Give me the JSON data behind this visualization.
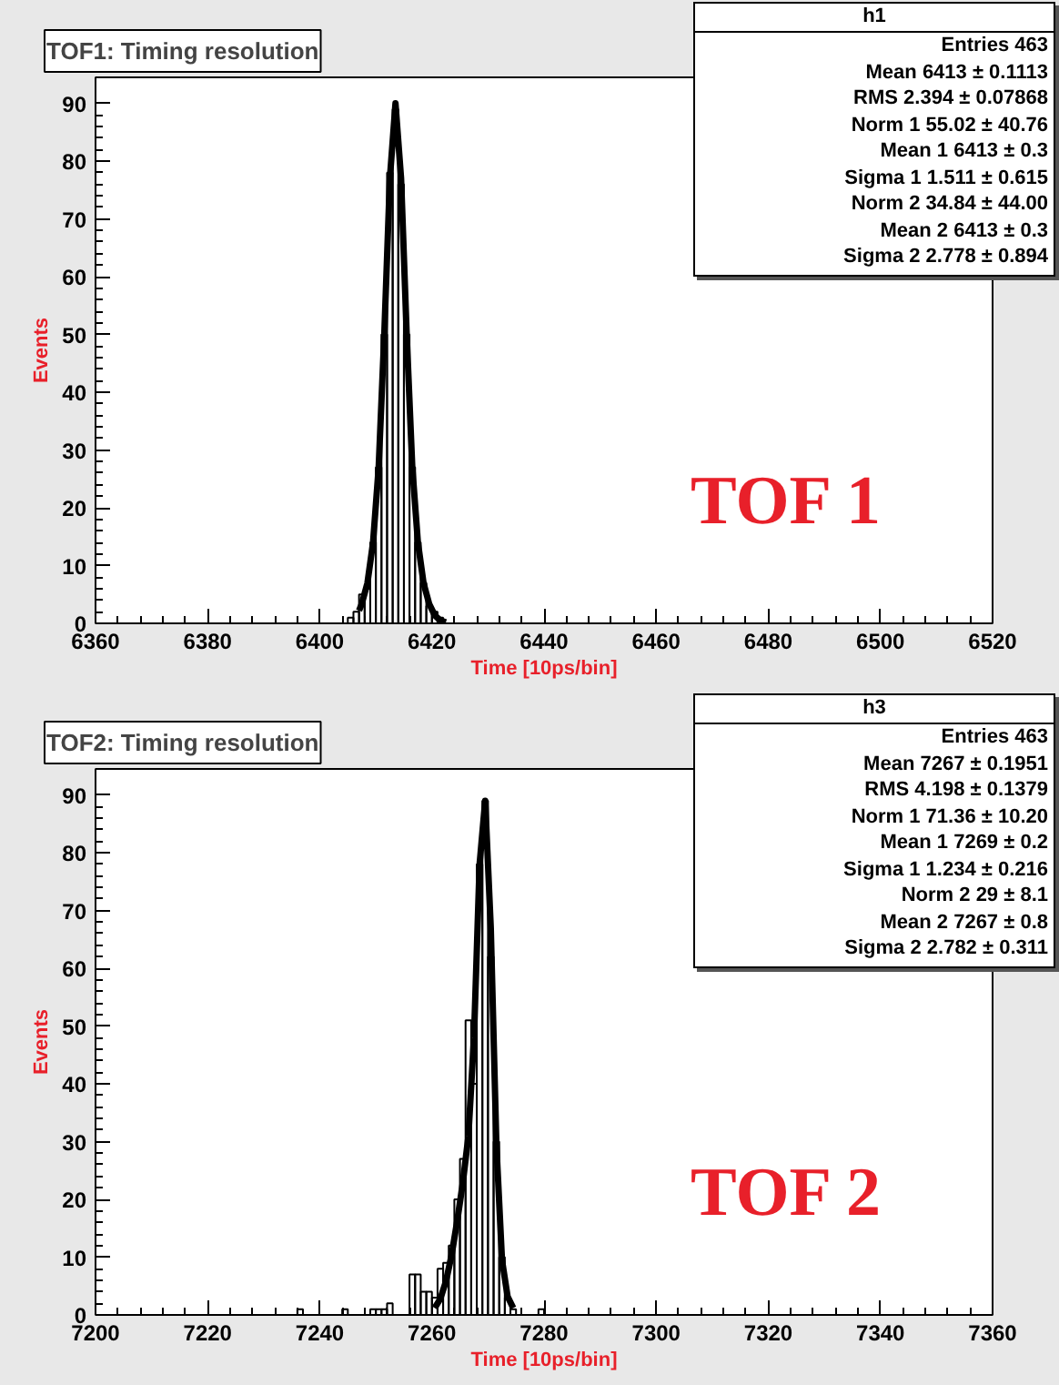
{
  "chart_data": [
    {
      "type": "histogram",
      "title": "TOF1: Timing resolution",
      "xlabel": "Time [10ps/bin]",
      "ylabel": "Events",
      "xlim": [
        6360,
        6520
      ],
      "ylim": [
        0,
        94.5
      ],
      "xticks": [
        6360,
        6380,
        6400,
        6420,
        6440,
        6460,
        6480,
        6500,
        6520
      ],
      "yticks": [
        0,
        10,
        20,
        30,
        40,
        50,
        60,
        70,
        80,
        90
      ],
      "series": [
        {
          "type": "histogram",
          "color": "#000000",
          "bins": [
            6405,
            6406,
            6407,
            6408,
            6409,
            6410,
            6411,
            6412,
            6413,
            6414,
            6415,
            6416,
            6417,
            6418,
            6419,
            6420,
            6421,
            6422
          ],
          "values": [
            1,
            2,
            5,
            6,
            14,
            27,
            50,
            78,
            89,
            76,
            50,
            27,
            14,
            7,
            3,
            2,
            1
          ]
        },
        {
          "type": "line",
          "color": "#000000",
          "x": [
            6407.0,
            6407.5,
            6408.5,
            6409.5,
            6410.5,
            6411.5,
            6412.5,
            6413.5,
            6414.5,
            6415.5,
            6416.5,
            6417.5,
            6418.5,
            6419.5,
            6420.5,
            6421.5,
            6422.5
          ],
          "values": [
            2.2,
            3.4,
            7,
            14,
            27,
            50,
            77,
            90,
            77,
            50,
            27,
            14,
            7,
            3.4,
            1.4,
            0.5,
            0.2
          ]
        }
      ],
      "annotations": [
        "h1",
        "Entries 463",
        "Mean 6413 ± 0.1113",
        "RMS 2.394 ± 0.07868",
        "Norm 1 55.02 ± 40.76",
        "Mean 1 6413 ± 0.3",
        "Sigma 1 1.511 ± 0.615",
        "Norm 2 34.84 ± 44.00",
        "Mean 2 6413 ± 0.3",
        "Sigma 2 2.778 ± 0.894",
        "TOF 1"
      ]
    },
    {
      "type": "histogram",
      "title": "TOF2: Timing resolution",
      "xlabel": "Time [10ps/bin]",
      "ylabel": "Events",
      "xlim": [
        7200,
        7360
      ],
      "ylim": [
        0,
        94.5
      ],
      "xticks": [
        7200,
        7220,
        7240,
        7260,
        7280,
        7300,
        7320,
        7340,
        7360
      ],
      "yticks": [
        0,
        10,
        20,
        30,
        40,
        50,
        60,
        70,
        80,
        90
      ],
      "series": [
        {
          "type": "histogram",
          "color": "#000000",
          "bins": [
            7236,
            7237,
            7238,
            7239,
            7240,
            7241,
            7242,
            7243,
            7244,
            7245,
            7246,
            7247,
            7248,
            7249,
            7250,
            7251,
            7252,
            7253,
            7254,
            7255,
            7256,
            7257,
            7258,
            7259,
            7260,
            7261,
            7262,
            7263,
            7264,
            7265,
            7266,
            7267,
            7268,
            7269,
            7270,
            7271,
            7272,
            7273,
            7274,
            7275,
            7276,
            7277,
            7278,
            7279,
            7280
          ],
          "values": [
            1,
            0,
            0,
            0,
            0,
            0,
            0,
            0,
            1,
            0,
            0,
            0,
            0,
            1,
            1,
            1,
            2,
            0,
            0,
            0,
            7,
            7,
            4,
            4,
            3,
            8,
            9,
            12,
            20,
            27,
            51,
            40,
            78,
            89,
            62,
            30,
            10,
            3,
            1,
            0,
            0,
            0,
            0,
            1
          ]
        },
        {
          "type": "line",
          "color": "#000000",
          "x": [
            7260.5,
            7261.5,
            7262.5,
            7263.5,
            7264.5,
            7265.5,
            7266.5,
            7267.5,
            7268.5,
            7269.5,
            7270.5,
            7271.5,
            7272.5,
            7273.5,
            7274.5
          ],
          "values": [
            1.2,
            2.8,
            5.8,
            10.3,
            16.2,
            22.8,
            30.9,
            48,
            78,
            89,
            67,
            29.4,
            9.5,
            3.2,
            1.2
          ]
        }
      ],
      "annotations": [
        "h3",
        "Entries 463",
        "Mean 7267 ± 0.1951",
        "RMS 4.198 ± 0.1379",
        "Norm 1 71.36 ± 10.20",
        "Mean 1 7269 ± 0.2",
        "Sigma 1 1.234 ± 0.216",
        "Norm 2 29 ± 8.1",
        "Mean 2 7267 ± 0.8",
        "Sigma 2 2.782 ± 0.311",
        "TOF 2"
      ]
    }
  ]
}
